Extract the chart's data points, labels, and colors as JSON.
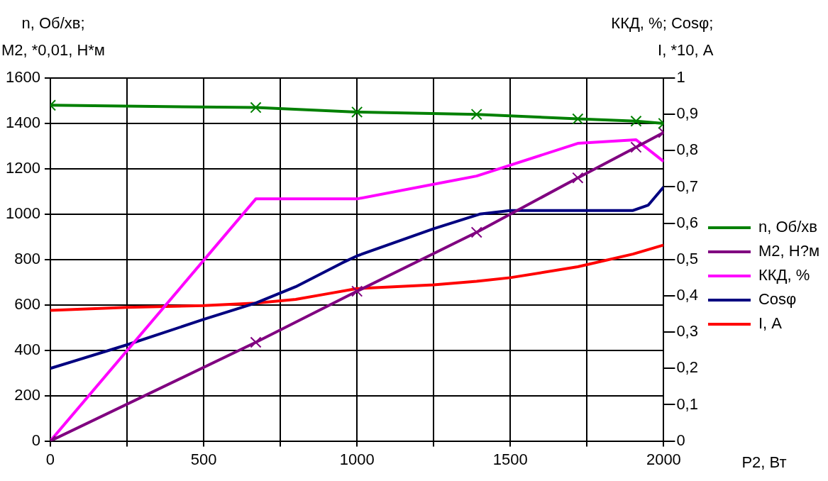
{
  "chart_data": {
    "type": "line",
    "ylabel": "n, Об/хв;\nM2, *0,01, Н*м",
    "y2label": "ККД, %; Cosφ;\nI, *10, А",
    "xlabel": "P2, Вт",
    "xlim": [
      0,
      2000
    ],
    "xticks": [
      0,
      {
        "value": 250,
        "label": null
      },
      500,
      {
        "value": 750,
        "label": null
      },
      1000,
      {
        "value": 1250,
        "label": null
      },
      1500,
      {
        "value": 1750,
        "label": null
      },
      2000
    ],
    "ylim": [
      0,
      1600
    ],
    "yticks": [
      0,
      200,
      400,
      600,
      800,
      1000,
      1200,
      1400,
      1600
    ],
    "y2lim": [
      0,
      1
    ],
    "y2ticks": [
      0,
      {
        "value": 0.1,
        "label": "0,1"
      },
      {
        "value": 0.2,
        "label": "0,2"
      },
      {
        "value": 0.3,
        "label": "0,3"
      },
      {
        "value": 0.4,
        "label": "0,4"
      },
      {
        "value": 0.5,
        "label": "0,5"
      },
      {
        "value": 0.6,
        "label": "0,6"
      },
      {
        "value": 0.7,
        "label": "0,7"
      },
      {
        "value": 0.8,
        "label": "0,8"
      },
      {
        "value": 0.9,
        "label": "0,9"
      },
      1
    ],
    "grid": true,
    "legend": "right",
    "line_style": "solid",
    "series": [
      {
        "name": "n, Об/хв",
        "color": "#008000",
        "marker": "cross",
        "x": [
          0,
          670,
          1000,
          1390,
          1720,
          1910,
          2000
        ],
        "values": [
          1480,
          1470,
          1450,
          1440,
          1420,
          1410,
          1400
        ]
      },
      {
        "name": "M2, Н?м",
        "color": "#800080",
        "marker": "cross",
        "x": [
          0,
          670,
          1000,
          1390,
          1720,
          1910,
          2000
        ],
        "values": [
          0,
          435,
          660,
          920,
          1160,
          1295,
          1360
        ]
      },
      {
        "name": "ККД, %",
        "color": "#ff00ff",
        "marker": "none",
        "axis": "y2",
        "x": [
          0,
          670,
          1000,
          1390,
          1720,
          1910,
          2000
        ],
        "values": [
          0,
          0.667,
          0.667,
          0.73,
          0.82,
          0.83,
          0.77
        ]
      },
      {
        "name": "Cosφ",
        "color": "#000080",
        "marker": "none",
        "axis": "y2",
        "x": [
          0,
          250,
          500,
          670,
          800,
          950,
          1000,
          1250,
          1400,
          1500,
          1750,
          1900,
          1950,
          2000
        ],
        "values": [
          0.2,
          0.265,
          0.335,
          0.38,
          0.425,
          0.49,
          0.51,
          0.585,
          0.625,
          0.635,
          0.635,
          0.635,
          0.65,
          0.7
        ]
      },
      {
        "name": "I, А",
        "color": "#ff0000",
        "marker": "none",
        "axis": "y2",
        "x": [
          0,
          250,
          500,
          670,
          800,
          900,
          1000,
          1250,
          1390,
          1500,
          1720,
          1900,
          2000
        ],
        "values": [
          0.36,
          0.368,
          0.373,
          0.38,
          0.39,
          0.405,
          0.42,
          0.43,
          0.44,
          0.45,
          0.48,
          0.515,
          0.54
        ]
      }
    ]
  }
}
